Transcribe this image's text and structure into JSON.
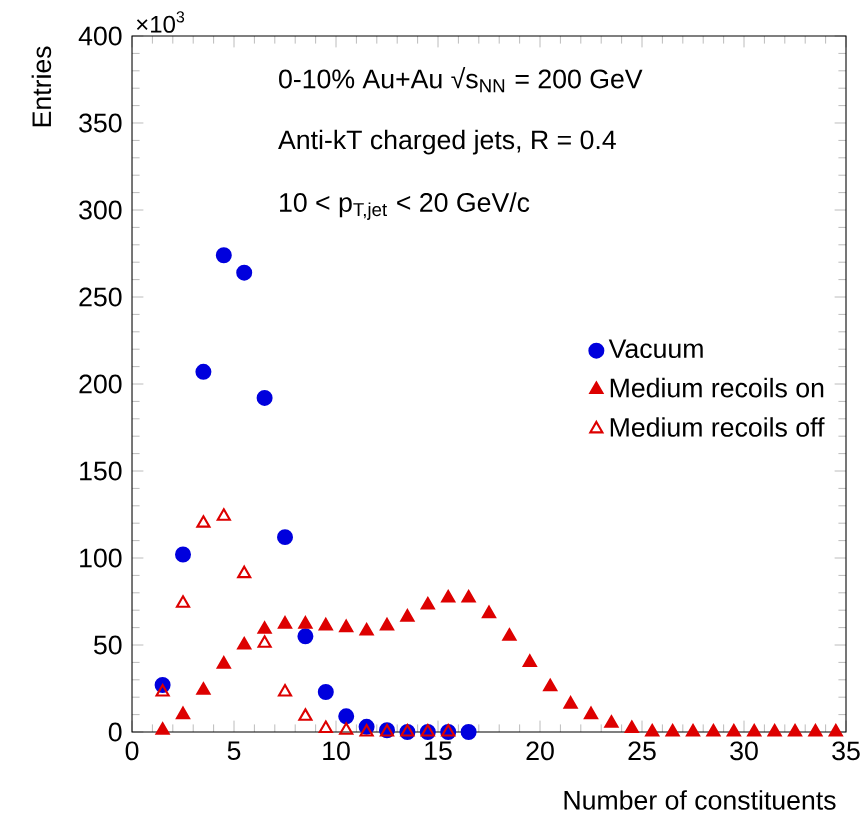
{
  "chart_data": {
    "type": "scatter",
    "xlabel": "Number of constituents",
    "ylabel": "Entries",
    "annotations": [
      "×10$^{3}$",
      "0-10% Au+Au √s$_{NN}$ = 200 GeV",
      "Anti-kT charged jets, R = 0.4",
      "10 < p$_{T,jet}$ < 20 GeV/c"
    ],
    "xlim": [
      0,
      35
    ],
    "ylim": [
      0,
      400
    ],
    "xticks": [
      0,
      5,
      10,
      15,
      20,
      25,
      30,
      35
    ],
    "yticks": [
      0,
      50,
      100,
      150,
      200,
      250,
      300,
      350,
      400
    ],
    "legend": "right",
    "grid": false,
    "series": [
      {
        "name": "Vacuum",
        "color": "#0000dd",
        "marker": "circle",
        "x": [
          1.5,
          2.5,
          3.5,
          4.5,
          5.5,
          6.5,
          7.5,
          8.5,
          9.5,
          10.5,
          11.5,
          12.5,
          13.5,
          14.5,
          15.5,
          16.5
        ],
        "values": [
          27,
          102,
          207,
          274,
          264,
          192,
          112,
          55,
          23,
          9,
          3,
          1,
          0,
          0,
          0,
          0
        ]
      },
      {
        "name": "Medium recoils on",
        "color": "#dd0000",
        "marker": "triangle",
        "x": [
          1.5,
          2.5,
          3.5,
          4.5,
          5.5,
          6.5,
          7.5,
          8.5,
          9.5,
          10.5,
          11.5,
          12.5,
          13.5,
          14.5,
          15.5,
          16.5,
          17.5,
          18.5,
          19.5,
          20.5,
          21.5,
          22.5,
          23.5,
          24.5,
          25.5,
          26.5,
          27.5,
          28.5,
          29.5,
          30.5,
          31.5,
          32.5,
          33.5,
          34.5
        ],
        "values": [
          1,
          10,
          24,
          39,
          50,
          59,
          62,
          62,
          61,
          60,
          58,
          61,
          66,
          73,
          77,
          77,
          68,
          55,
          40,
          26,
          16,
          10,
          5,
          2,
          0,
          0,
          0,
          0,
          0,
          0,
          0,
          0,
          0,
          0
        ]
      },
      {
        "name": "Medium recoils off",
        "color": "#dd0000",
        "marker": "triangle-open",
        "x": [
          1.5,
          2.5,
          3.5,
          4.5,
          5.5,
          6.5,
          7.5,
          8.5,
          9.5,
          10.5,
          11.5,
          12.5,
          13.5,
          14.5,
          15.5
        ],
        "values": [
          23,
          74,
          120,
          124,
          91,
          51,
          23,
          9,
          2,
          1,
          0,
          0,
          0,
          0,
          0
        ]
      }
    ]
  }
}
